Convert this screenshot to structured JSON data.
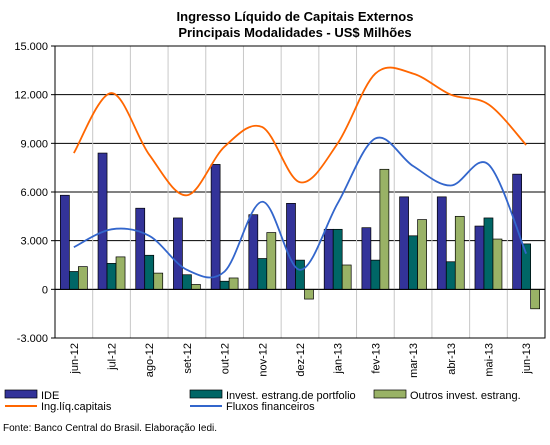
{
  "chart_data": {
    "type": "bar",
    "title": "Ingresso Líquido de Capitais Externos",
    "subtitle": "Principais Modalidades  - US$ Milhões",
    "categories": [
      "jun-12",
      "jul-12",
      "ago-12",
      "set-12",
      "out-12",
      "nov-12",
      "dez-12",
      "jan-13",
      "fev-13",
      "mar-13",
      "abr-13",
      "mai-13",
      "jun-13"
    ],
    "ylim": [
      -3000,
      15000
    ],
    "yticks": [
      "-3.000",
      "0",
      "3.000",
      "6.000",
      "9.000",
      "12.000",
      "15.000"
    ],
    "ytick_values": [
      -3000,
      0,
      3000,
      6000,
      9000,
      12000,
      15000
    ],
    "grid": true,
    "legend_position": "bottom",
    "bar_series": [
      {
        "name": "IDE",
        "color": "#333399",
        "values": [
          5800,
          8400,
          5000,
          4400,
          7700,
          4600,
          5300,
          3700,
          3800,
          5700,
          5700,
          3900,
          7100
        ]
      },
      {
        "name": "Invest. estrang.de portfolio",
        "color": "#006666",
        "values": [
          1100,
          1600,
          2100,
          900,
          500,
          1900,
          1800,
          3700,
          1800,
          3300,
          1700,
          4400,
          2800
        ]
      },
      {
        "name": "Outros invest. estrang.",
        "color": "#99B266",
        "values": [
          1400,
          2000,
          1000,
          300,
          700,
          3500,
          -600,
          1500,
          7400,
          4300,
          4500,
          3100,
          -1200
        ]
      }
    ],
    "line_series": [
      {
        "name": "Ing.líq.capitais",
        "color": "#FF6600",
        "values": [
          8400,
          12100,
          8300,
          5800,
          8800,
          10000,
          6600,
          9000,
          13300,
          13300,
          12000,
          11400,
          8900
        ]
      },
      {
        "name": "Fluxos financeiros",
        "color": "#3366CC",
        "values": [
          2600,
          3700,
          3300,
          1200,
          1100,
          5400,
          1200,
          5300,
          9300,
          7600,
          6400,
          7700,
          2200
        ]
      }
    ]
  },
  "source_note": "Fonte: Banco Central do Brasil. Elaboração Iedi."
}
